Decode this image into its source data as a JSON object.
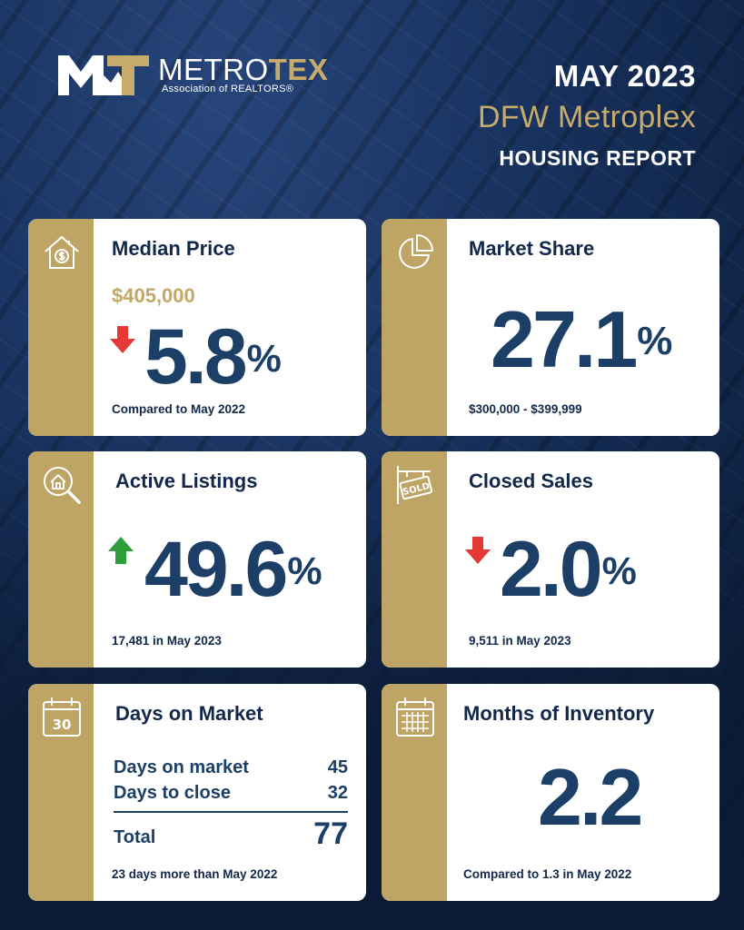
{
  "logo": {
    "name_part1": "METRO",
    "name_part2": "TEX",
    "subtitle": "Association of REALTORS®"
  },
  "header": {
    "date": "MAY 2023",
    "region": "DFW Metroplex",
    "report": "HOUSING REPORT"
  },
  "colors": {
    "navy": "#12284a",
    "gold": "#bea566",
    "value_blue": "#1b3f66",
    "down_red": "#e53935",
    "up_green": "#2e9e3a"
  },
  "cards": {
    "median_price": {
      "icon": "house-dollar-icon",
      "title": "Median Price",
      "price": "$405,000",
      "direction": "down",
      "change": "5.8",
      "unit": "%",
      "note": "Compared to May 2022"
    },
    "market_share": {
      "icon": "pie-chart-icon",
      "title": "Market Share",
      "value": "27.1",
      "unit": "%",
      "note": "$300,000 - $399,999"
    },
    "active_listings": {
      "icon": "magnify-house-icon",
      "title": "Active Listings",
      "direction": "up",
      "change": "49.6",
      "unit": "%",
      "note": "17,481 in May 2023"
    },
    "closed_sales": {
      "icon": "sold-sign-icon",
      "title": "Closed Sales",
      "direction": "down",
      "change": "2.0",
      "unit": "%",
      "note": "9,511 in May 2023"
    },
    "days_on_market": {
      "icon": "calendar-30-icon",
      "icon_text": "30",
      "title": "Days on Market",
      "rows": [
        {
          "label": "Days on market",
          "value": "45"
        },
        {
          "label": "Days to close",
          "value": "32"
        }
      ],
      "total_label": "Total",
      "total_value": "77",
      "note": "23 days more than May 2022"
    },
    "months_inventory": {
      "icon": "calendar-grid-icon",
      "title": "Months of Inventory",
      "value": "2.2",
      "note": "Compared to 1.3 in May 2022"
    }
  }
}
